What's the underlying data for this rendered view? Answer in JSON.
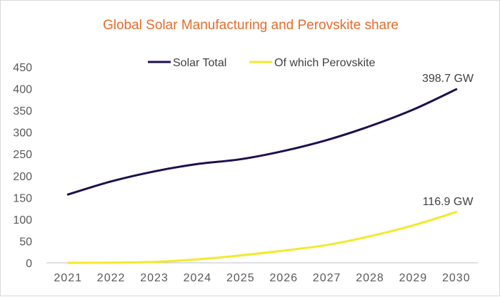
{
  "chart_data": {
    "type": "line",
    "title": "Global Solar Manufacturing and Perovskite share",
    "categories": [
      "2021",
      "2022",
      "2023",
      "2024",
      "2025",
      "2026",
      "2027",
      "2028",
      "2029",
      "2030"
    ],
    "series": [
      {
        "name": "Solar Total",
        "color": "#1f0f4d",
        "values": [
          157,
          187,
          210,
          227,
          238,
          257,
          282,
          314,
          352,
          398.7
        ]
      },
      {
        "name": "Of which Perovskite",
        "color": "#f2ea2a",
        "values": [
          0,
          0.5,
          2,
          8,
          17,
          28,
          41,
          61,
          86,
          116.9
        ]
      }
    ],
    "ylim": [
      0,
      450
    ],
    "yticks": [
      "0",
      "50",
      "100",
      "150",
      "200",
      "250",
      "300",
      "350",
      "400",
      "450"
    ],
    "annotations": [
      "398.7 GW",
      "116.9 GW"
    ],
    "legend_position": "top",
    "grid": false,
    "colors": {
      "title": "#e46c2c",
      "axis": "#bfbfbf"
    }
  }
}
